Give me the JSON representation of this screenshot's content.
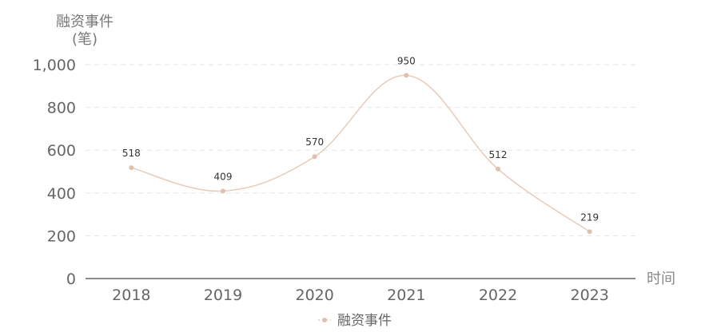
{
  "chart_data": {
    "type": "line",
    "ylabel_line1": "融资事件",
    "ylabel_line2": "(笔)",
    "xlabel": "时间",
    "categories": [
      "2018",
      "2019",
      "2020",
      "2021",
      "2022",
      "2023"
    ],
    "series": [
      {
        "name": "融资事件",
        "values": [
          518,
          409,
          570,
          950,
          512,
          219
        ]
      }
    ],
    "yticks": [
      "0",
      "200",
      "400",
      "600",
      "800",
      "1,000"
    ],
    "ylim": [
      0,
      1000
    ],
    "grid": true,
    "legend_position": "bottom-center",
    "colors": {
      "line": "#e8cbbb",
      "point": "#e0c0ad",
      "grid": "#e6e6e6",
      "axis": "#666666"
    }
  }
}
